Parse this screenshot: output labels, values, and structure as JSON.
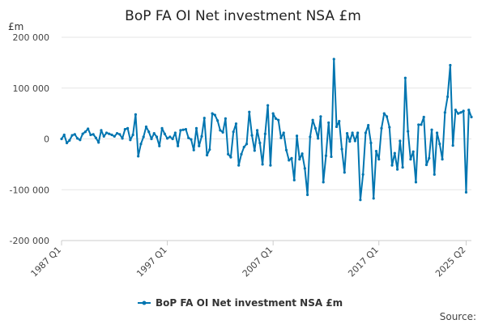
{
  "chart_data": {
    "type": "line",
    "title": "BoP FA OI Net investment NSA £m",
    "unit_label": "£m",
    "source_label": "Source:",
    "ylim": [
      -200000,
      200000
    ],
    "y_ticks": [
      {
        "value": 200000,
        "label": "200 000"
      },
      {
        "value": 100000,
        "label": "100 000"
      },
      {
        "value": 0,
        "label": "0"
      },
      {
        "value": -100000,
        "label": "-100 000"
      },
      {
        "value": -200000,
        "label": "-200 000"
      }
    ],
    "x_tick_labels": [
      {
        "index": 0,
        "label": "1987 Q1"
      },
      {
        "index": 40,
        "label": "1997 Q1"
      },
      {
        "index": 80,
        "label": "2007 Q1"
      },
      {
        "index": 120,
        "label": "2017 Q1"
      },
      {
        "index": 153,
        "label": "2025 Q2"
      }
    ],
    "grid": true,
    "legend_position": "bottom",
    "colors": {
      "series": "#0075b0",
      "grid": "#e6e6e6",
      "axis": "#cccccc"
    },
    "series": [
      {
        "name": "BoP FA OI Net investment NSA £m",
        "values": [
          0,
          8000,
          -8000,
          -3000,
          7000,
          9000,
          1000,
          -2000,
          10000,
          14000,
          20000,
          8000,
          9000,
          2000,
          -7000,
          17000,
          5000,
          12000,
          10000,
          8000,
          5000,
          11000,
          9000,
          1000,
          19000,
          21000,
          -2000,
          8000,
          48000,
          -34000,
          -10000,
          4000,
          24000,
          14000,
          0,
          11000,
          4000,
          -14000,
          21000,
          10000,
          1000,
          4000,
          0,
          12000,
          -14000,
          17000,
          18000,
          19000,
          2000,
          -1000,
          -22000,
          21000,
          -14000,
          5000,
          41000,
          -32000,
          -21000,
          50000,
          47000,
          36000,
          17000,
          13000,
          40000,
          -30000,
          -36000,
          14000,
          30000,
          -52000,
          -30000,
          -16000,
          -10000,
          53000,
          7000,
          -23000,
          17000,
          -8000,
          -50000,
          10000,
          66000,
          -52000,
          50000,
          40000,
          37000,
          2000,
          12000,
          -22000,
          -42000,
          -38000,
          -81000,
          6000,
          -40000,
          -29000,
          -58000,
          -110000,
          4000,
          37000,
          21000,
          1000,
          44000,
          -85000,
          -33000,
          32000,
          -35000,
          157000,
          24000,
          35000,
          -20000,
          -66000,
          11000,
          -5000,
          12000,
          -4000,
          12000,
          -120000,
          -70000,
          12000,
          27000,
          -8000,
          -117000,
          -24000,
          -40000,
          21000,
          50000,
          44000,
          23000,
          -52000,
          -28000,
          -60000,
          -4000,
          -56000,
          120000,
          15000,
          -40000,
          -25000,
          -85000,
          28000,
          28000,
          43000,
          -51000,
          -38000,
          18000,
          -70000,
          12000,
          -10000,
          -40000,
          52000,
          83000,
          145000,
          -13000,
          57000,
          50000,
          52000,
          55000,
          -105000,
          57000,
          43000
        ]
      }
    ]
  }
}
